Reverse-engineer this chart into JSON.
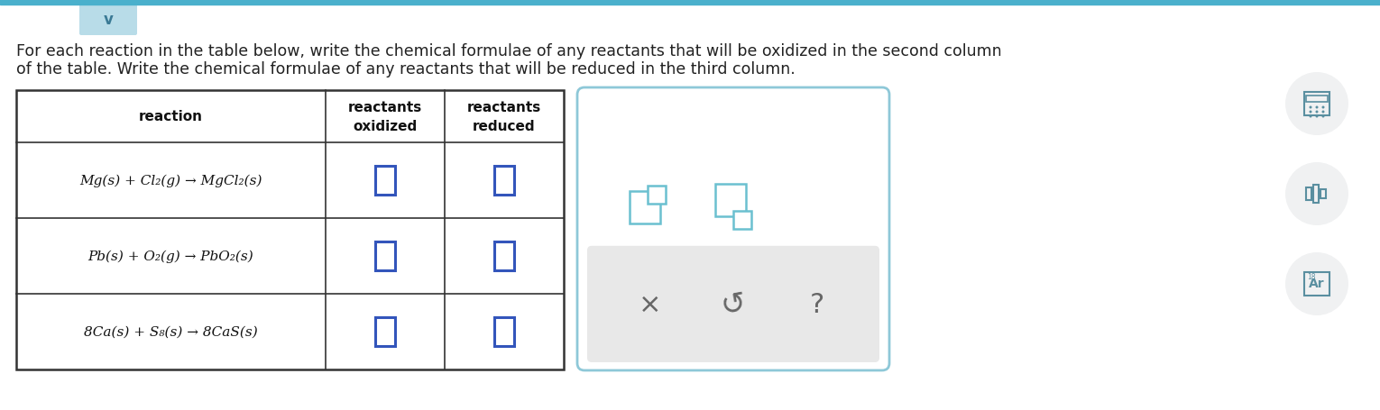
{
  "background_color": "#ffffff",
  "top_accent_color": "#4ab0cc",
  "header_text_line1": "For each reaction in the table below, write the chemical formulae of any reactants that will be oxidized in the second column",
  "header_text_line2": "of the table. Write the chemical formulae of any reactants that will be reduced in the third column.",
  "header_fontsize": 12.5,
  "col_headers": [
    "reaction",
    "reactants\noxidized",
    "reactants\nreduced"
  ],
  "rows": [
    "Mg(s) + Cl₂(g) → MgCl₂(s)",
    "Pb(s) + O₂(g) → PbO₂(s)",
    "8Ca(s) + S₈(s) → 8CaS(s)"
  ],
  "input_box_color": "#3355bb",
  "table_border_color": "#333333",
  "col_header_fontsize": 11,
  "row_fontsize": 11,
  "panel_border_color": "#8ec8d8",
  "panel_lower_bg": "#e8e8e8",
  "icon_color": "#5a8fa0",
  "icon_bg": "#f0f1f2"
}
